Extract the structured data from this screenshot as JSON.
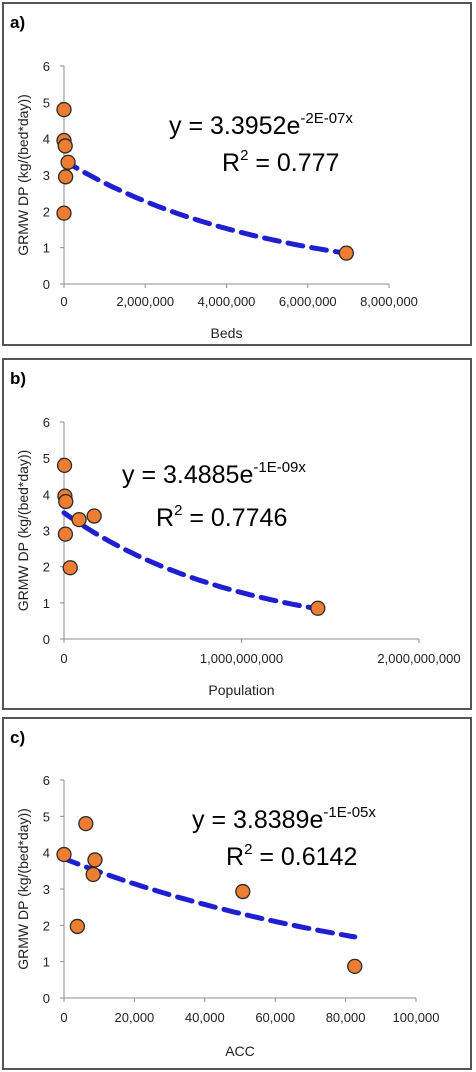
{
  "chart_data": [
    {
      "type": "scatter",
      "panel_label": "a)",
      "xlabel": "Beds",
      "ylabel": "GRMW DP (kg/(bed*day))",
      "xlim": [
        0,
        8000000
      ],
      "ylim": [
        0,
        6
      ],
      "x_ticks": [
        "0",
        "2,000,000",
        "4,000,000",
        "6,000,000",
        "8,000,000"
      ],
      "y_ticks": [
        "0",
        "1",
        "2",
        "3",
        "4",
        "5",
        "6"
      ],
      "points": [
        {
          "x": 0,
          "y": 4.8
        },
        {
          "x": 0,
          "y": 3.95
        },
        {
          "x": 30000,
          "y": 3.8
        },
        {
          "x": 100000,
          "y": 3.35
        },
        {
          "x": 40000,
          "y": 2.95
        },
        {
          "x": 0,
          "y": 1.95
        },
        {
          "x": 6950000,
          "y": 0.85
        }
      ],
      "trendline": {
        "type": "exponential",
        "a": 3.3952,
        "b": -2e-07,
        "x_range": [
          0,
          6950000
        ]
      },
      "equation_base": "y = 3.3952e",
      "equation_exp": "-2E-07x",
      "r2_base": "R",
      "r2_sup": "2",
      "r2_value": " = 0.777",
      "colors": {
        "marker": "#ed7d31",
        "marker_edge": "#2b2b2b",
        "trend": "#1f1fd1"
      },
      "grid": false,
      "legend": "none"
    },
    {
      "type": "scatter",
      "panel_label": "b)",
      "xlabel": "Population",
      "ylabel": "GRMW DP (kg/(bed*day))",
      "xlim": [
        0,
        2000000000
      ],
      "ylim": [
        0,
        6
      ],
      "x_ticks": [
        "0",
        "1,000,000,000",
        "2,000,000,000"
      ],
      "y_ticks": [
        "0",
        "1",
        "2",
        "3",
        "4",
        "5",
        "6"
      ],
      "points": [
        {
          "x": 3000000,
          "y": 4.8
        },
        {
          "x": 5000000,
          "y": 3.95
        },
        {
          "x": 10000000,
          "y": 3.8
        },
        {
          "x": 85000000,
          "y": 3.3
        },
        {
          "x": 170000000,
          "y": 3.4
        },
        {
          "x": 8000000,
          "y": 2.9
        },
        {
          "x": 35000000,
          "y": 1.97
        },
        {
          "x": 1430000000,
          "y": 0.85
        }
      ],
      "trendline": {
        "type": "exponential",
        "a": 3.4885,
        "b": -1e-09,
        "x_range": [
          0,
          1430000000
        ]
      },
      "equation_base": "y = 3.4885e",
      "equation_exp": "-1E-09x",
      "r2_base": "R",
      "r2_sup": "2",
      "r2_value": " = 0.7746",
      "colors": {
        "marker": "#ed7d31",
        "marker_edge": "#2b2b2b",
        "trend": "#1f1fd1"
      },
      "grid": false,
      "legend": "none"
    },
    {
      "type": "scatter",
      "panel_label": "c)",
      "xlabel": "ACC",
      "ylabel": "GRMW DP (kg/(bed*day))",
      "xlim": [
        0,
        100000
      ],
      "ylim": [
        0,
        6
      ],
      "x_ticks": [
        "0",
        "20,000",
        "40,000",
        "60,000",
        "80,000",
        "100,000"
      ],
      "y_ticks": [
        "0",
        "1",
        "2",
        "3",
        "4",
        "5",
        "6"
      ],
      "points": [
        {
          "x": 0,
          "y": 3.95
        },
        {
          "x": 3800,
          "y": 1.97
        },
        {
          "x": 6200,
          "y": 4.8
        },
        {
          "x": 8300,
          "y": 3.4
        },
        {
          "x": 8800,
          "y": 3.8
        },
        {
          "x": 50800,
          "y": 2.93
        },
        {
          "x": 82600,
          "y": 0.87
        }
      ],
      "trendline": {
        "type": "exponential",
        "a": 3.8389,
        "b": -1e-05,
        "x_range": [
          0,
          82600
        ]
      },
      "equation_base": "y = 3.8389e",
      "equation_exp": "-1E-05x",
      "r2_base": "R",
      "r2_sup": "2",
      "r2_value": " = 0.6142",
      "colors": {
        "marker": "#ed7d31",
        "marker_edge": "#2b2b2b",
        "trend": "#1f1fd1"
      },
      "grid": false,
      "legend": "none"
    }
  ]
}
